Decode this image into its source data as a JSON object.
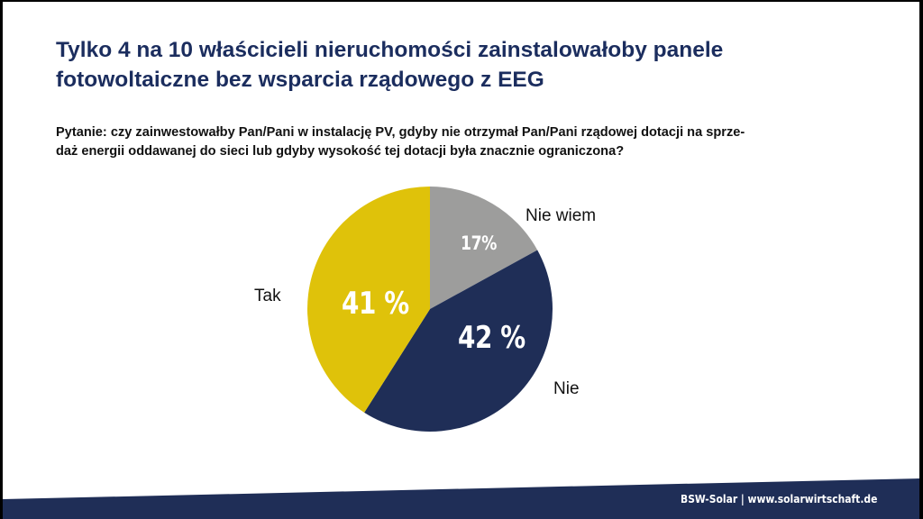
{
  "slide": {
    "title_lines": [
      "Tylko 4 na 10 właścicieli nieruchomości zainstalowałoby panele",
      "fotowoltaiczne bez wsparcia rządowego z EEG"
    ],
    "question_lines": [
      "Pytanie: czy zainwestowałby Pan/Pani w instalację PV, gdyby nie otrzymał Pan/Pani rządowej dotacji na sprze-",
      "daż energii oddawanej do sieci lub gdyby wysokość tej dotacji była znacznie ograniczona?"
    ],
    "footer": "BSW-Solar | www.solarwirtschaft.de"
  },
  "chart_data": {
    "type": "pie",
    "title": "Tylko 4 na 10 właścicieli nieruchomości zainstalowałoby panele fotowoltaiczne bez wsparcia rządowego z EEG",
    "subtitle": "Pytanie: czy zainwestowałby Pan/Pani w instalację PV, gdyby nie otrzymał Pan/Pani rządowej dotacji na sprzedaż energii oddawanej do sieci lub gdyby wysokość tej dotacji była znacznie ograniczona?",
    "categories": [
      "Nie wiem",
      "Nie",
      "Tak"
    ],
    "values": [
      17,
      42,
      41
    ],
    "unit": "%",
    "slices": [
      {
        "label": "Nie wiem",
        "value": 17,
        "display": "17%",
        "color": "#9d9d9c"
      },
      {
        "label": "Nie",
        "value": 42,
        "display": "42 %",
        "color": "#1f2e57"
      },
      {
        "label": "Tak",
        "value": 41,
        "display": "41 %",
        "color": "#dfc20a"
      }
    ],
    "start_angle_deg": 0,
    "direction": "clockwise",
    "legend": "none (labels placed outside slices)"
  },
  "colors": {
    "title": "#1b2d5e",
    "footer_band": "#1f2e57",
    "footer_text": "#ffffff"
  }
}
